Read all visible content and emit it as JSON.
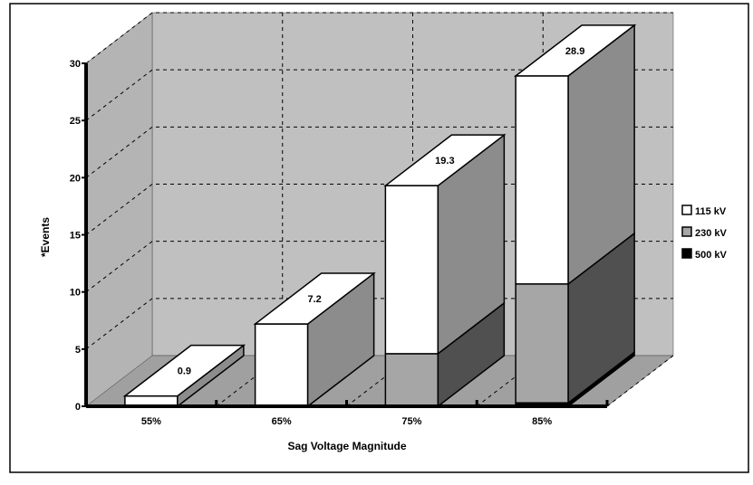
{
  "chart_data": {
    "type": "bar",
    "stacked": true,
    "three_d": true,
    "title": "",
    "xlabel": "Sag Voltage Magnitude",
    "ylabel": "*Events",
    "ylim": [
      0,
      30
    ],
    "yticks": [
      0,
      5,
      10,
      15,
      20,
      25,
      30
    ],
    "grid": true,
    "categories": [
      "55%",
      "65%",
      "75%",
      "85%"
    ],
    "series": [
      {
        "name": "500 kV",
        "values": [
          0,
          0,
          0,
          0.3
        ],
        "front": "#000000",
        "side": "#000000"
      },
      {
        "name": "230 kV",
        "values": [
          0,
          0,
          4.6,
          10.4
        ],
        "front": "#a6a6a6",
        "side": "#505050"
      },
      {
        "name": "115 kV",
        "values": [
          0.9,
          7.2,
          14.7,
          18.2
        ],
        "front": "#ffffff",
        "side": "#8c8c8c"
      }
    ],
    "totals": [
      "0.9",
      "7.2",
      "19.3",
      "28.9"
    ],
    "legend": {
      "placement": "right",
      "entries": [
        "115 kV",
        "230 kV",
        "500 kV"
      ]
    }
  }
}
